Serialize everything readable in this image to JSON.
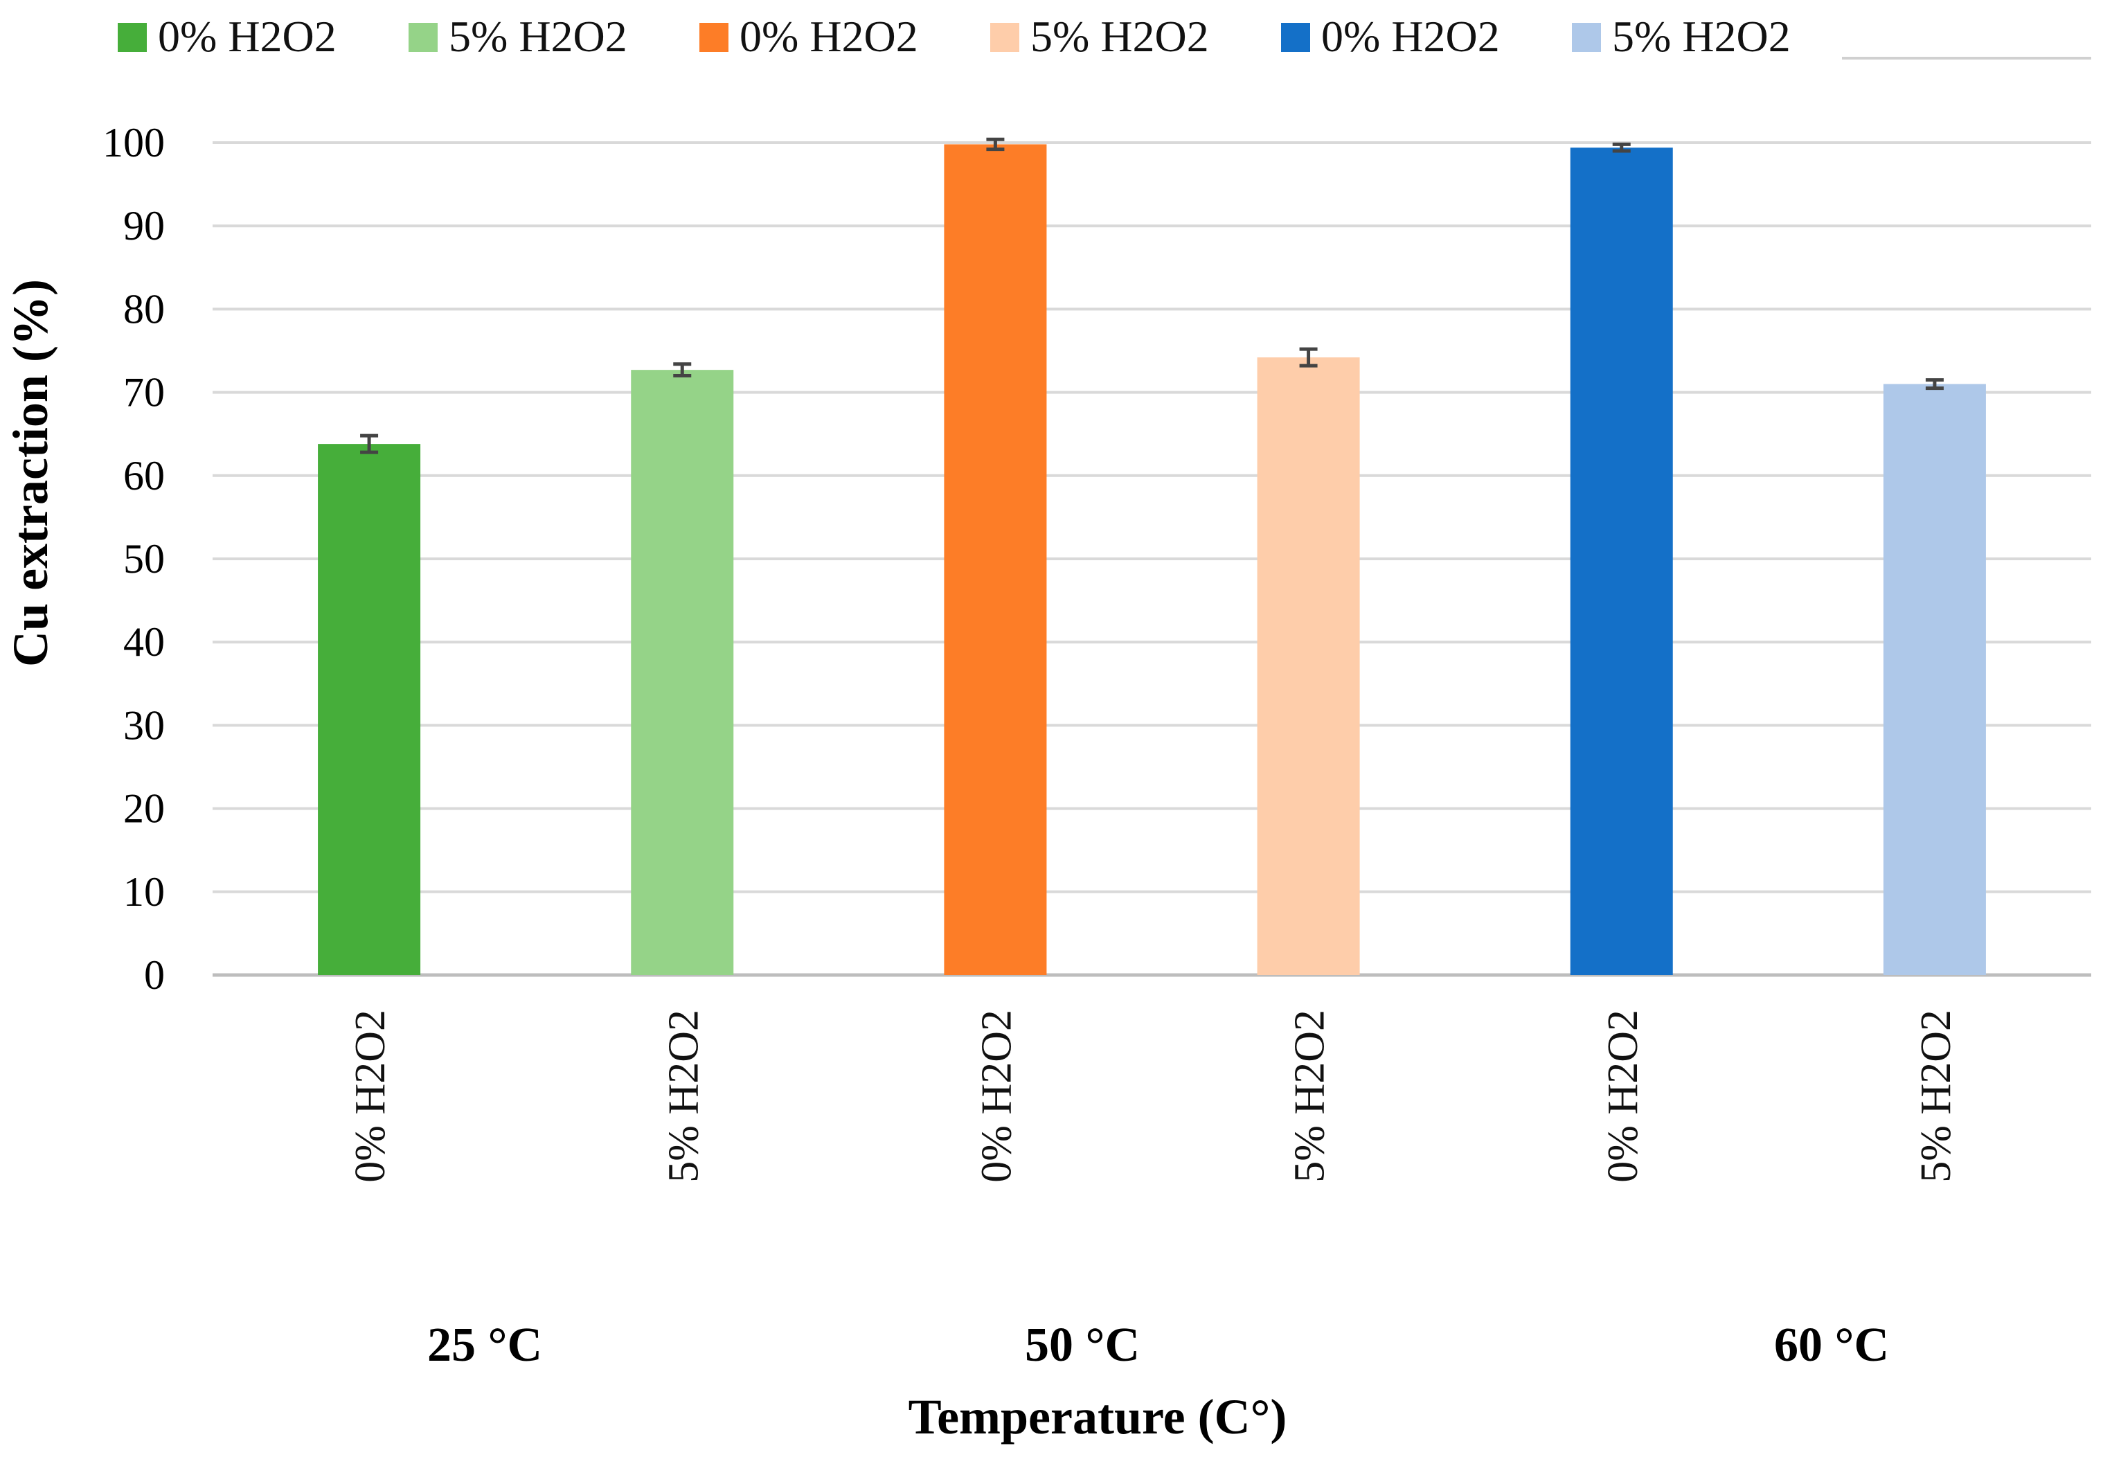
{
  "chart_data": {
    "type": "bar",
    "title": "",
    "xlabel": "Temperature (C°)",
    "ylabel": "Cu extraction (%)",
    "ylim": [
      0,
      100
    ],
    "yticks": [
      0,
      10,
      20,
      30,
      40,
      50,
      60,
      70,
      80,
      90,
      100
    ],
    "grid": true,
    "legend_position": "top",
    "categories": [
      "0% H2O2",
      "5% H2O2",
      "0% H2O2",
      "5% H2O2",
      "0% H2O2",
      "5% H2O2"
    ],
    "groups": [
      {
        "label": "25 °C",
        "members": [
          0,
          1
        ]
      },
      {
        "label": "50 °C",
        "members": [
          2,
          3
        ]
      },
      {
        "label": "60 °C",
        "members": [
          4,
          5
        ]
      }
    ],
    "values": [
      63.8,
      72.7,
      99.8,
      74.2,
      99.4,
      71.0
    ],
    "errors": [
      1.0,
      0.7,
      0.6,
      1.0,
      0.4,
      0.5
    ],
    "colors": [
      "#46ae3a",
      "#95d388",
      "#fd7d27",
      "#fecdaa",
      "#1470c8",
      "#aec8e9"
    ],
    "legend": [
      {
        "label": "0% H2O2",
        "color": "#46ae3a"
      },
      {
        "label": "5% H2O2",
        "color": "#95d388"
      },
      {
        "label": "0% H2O2",
        "color": "#fd7d27"
      },
      {
        "label": "5% H2O2",
        "color": "#fecdaa"
      },
      {
        "label": "0% H2O2",
        "color": "#1470c8"
      },
      {
        "label": "5% H2O2",
        "color": "#aec8e9"
      }
    ]
  }
}
